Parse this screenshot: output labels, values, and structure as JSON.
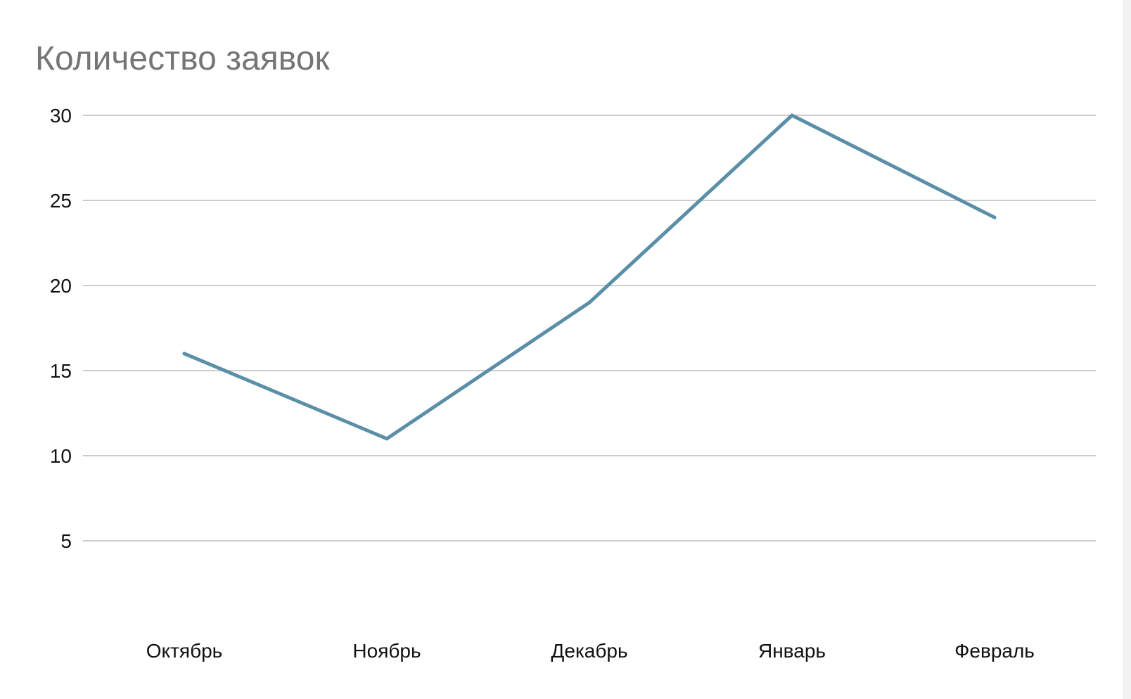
{
  "chart_data": {
    "type": "line",
    "title": "Количество заявок",
    "xlabel": "",
    "ylabel": "",
    "categories": [
      "Октябрь",
      "Ноябрь",
      "Декабрь",
      "Январь",
      "Февраль"
    ],
    "series": [
      {
        "values": [
          16,
          11,
          19,
          30,
          24
        ],
        "color": "#5b8fa8"
      }
    ],
    "y_ticks": [
      "5",
      "10",
      "15",
      "20",
      "25",
      "30"
    ],
    "ylim": [
      0,
      30
    ],
    "grid": true,
    "legend": "none"
  }
}
